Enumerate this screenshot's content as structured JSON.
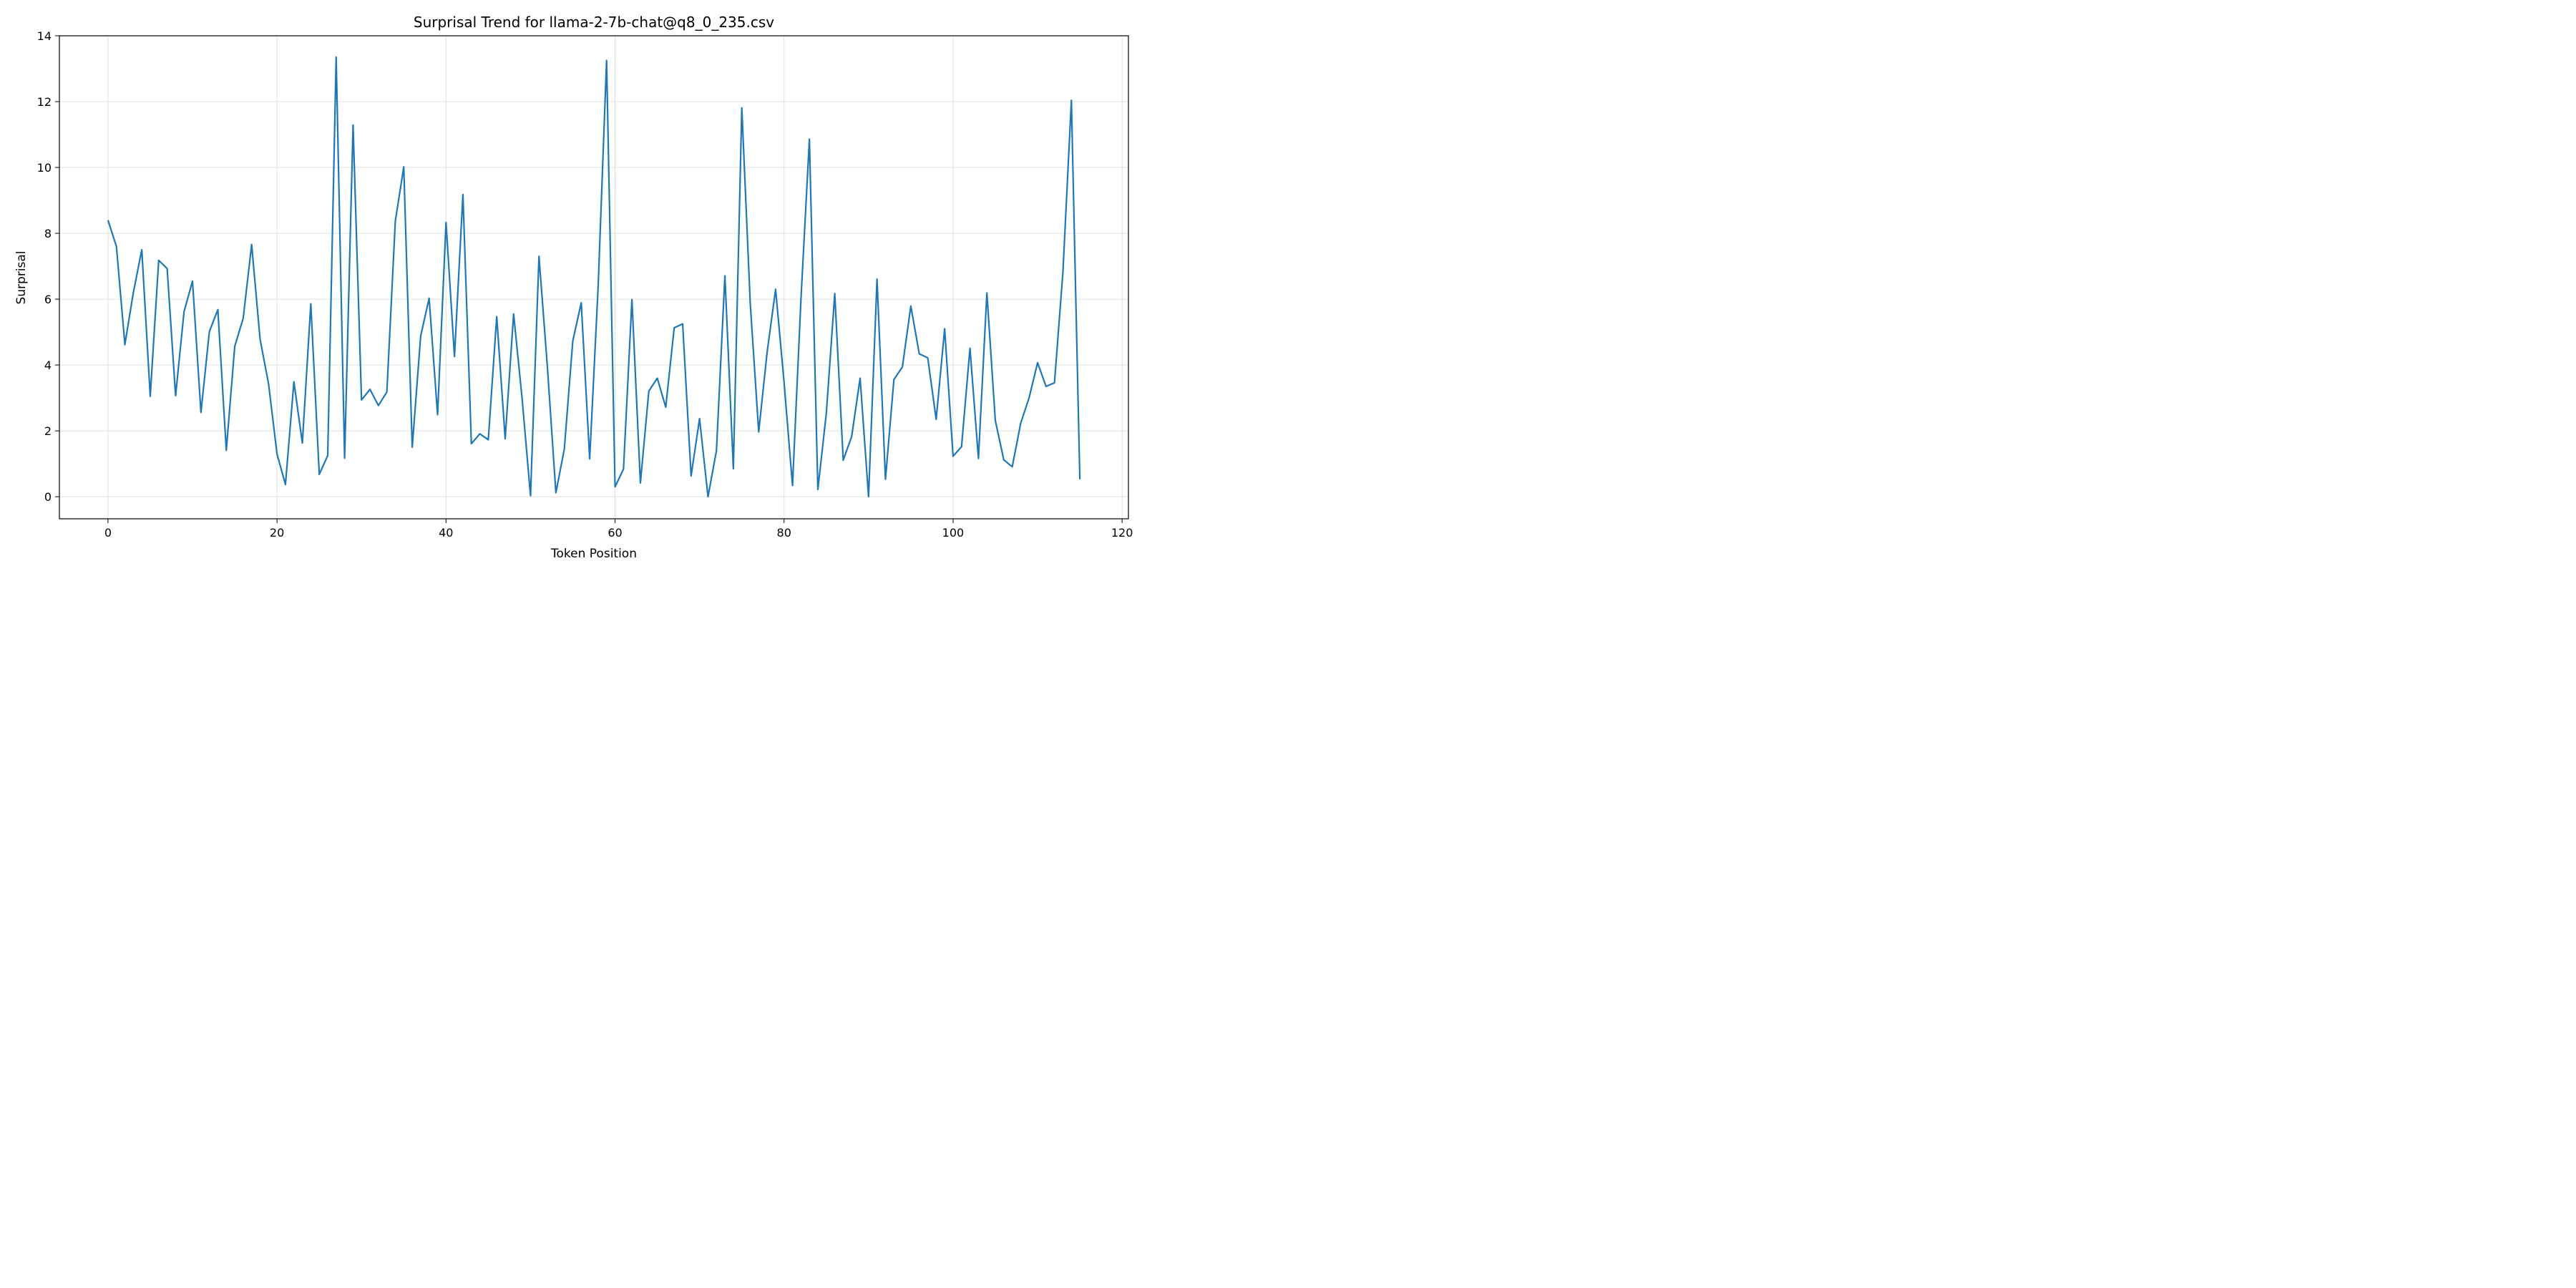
{
  "chart_data": {
    "type": "line",
    "title": "Surprisal Trend for llama-2-7b-chat@q8_0_235.csv",
    "xlabel": "Token Position",
    "ylabel": "Surprisal",
    "xlim": [
      -5.75,
      120.75
    ],
    "ylim": [
      -0.67,
      14.0
    ],
    "xticks": [
      0,
      20,
      40,
      60,
      80,
      100,
      120
    ],
    "yticks": [
      0,
      2,
      4,
      6,
      8,
      10,
      12,
      14
    ],
    "grid": true,
    "line_color": "#1f77b4",
    "series": [
      {
        "x": [
          0,
          1,
          2,
          3,
          4,
          5,
          6,
          7,
          8,
          9,
          10,
          11,
          12,
          13,
          14,
          15,
          16,
          17,
          18,
          19,
          20,
          21,
          22,
          23,
          24,
          25,
          26,
          27,
          28,
          29,
          30,
          31,
          32,
          33,
          34,
          35,
          36,
          37,
          38,
          39,
          40,
          41,
          42,
          43,
          44,
          45,
          46,
          47,
          48,
          49,
          50,
          51,
          52,
          53,
          54,
          55,
          56,
          57,
          58,
          59,
          60,
          61,
          62,
          63,
          64,
          65,
          66,
          67,
          68,
          69,
          70,
          71,
          72,
          73,
          74,
          75,
          76,
          77,
          78,
          79,
          80,
          81,
          82,
          83,
          84,
          85,
          86,
          87,
          88,
          89,
          90,
          91,
          92,
          93,
          94,
          95,
          96,
          97,
          98,
          99,
          100,
          101,
          102,
          103,
          104,
          105,
          106,
          107,
          108,
          109,
          110,
          111,
          112,
          113,
          114,
          115
        ],
        "values": [
          8.4,
          7.6,
          4.62,
          6.2,
          7.5,
          3.05,
          7.18,
          6.93,
          3.07,
          5.62,
          6.55,
          2.56,
          5.02,
          5.68,
          1.41,
          4.57,
          5.42,
          7.66,
          4.78,
          3.43,
          1.3,
          0.37,
          3.49,
          1.63,
          5.86,
          0.68,
          1.25,
          13.35,
          1.17,
          11.29,
          2.94,
          3.26,
          2.77,
          3.18,
          8.37,
          10.02,
          1.5,
          4.88,
          6.03,
          2.49,
          8.33,
          4.26,
          9.18,
          1.61,
          1.91,
          1.73,
          5.47,
          1.76,
          5.55,
          2.99,
          0.03,
          7.3,
          3.93,
          0.12,
          1.45,
          4.73,
          5.89,
          1.15,
          6.38,
          13.25,
          0.3,
          0.84,
          5.99,
          0.42,
          3.21,
          3.6,
          2.72,
          5.13,
          5.25,
          0.63,
          2.37,
          0.0,
          1.4,
          6.71,
          0.85,
          11.81,
          5.87,
          1.97,
          4.4,
          6.3,
          3.48,
          0.34,
          6.0,
          10.86,
          0.22,
          2.53,
          6.17,
          1.11,
          1.83,
          3.6,
          0.0,
          6.61,
          0.53,
          3.56,
          3.94,
          5.79,
          4.34,
          4.22,
          2.35,
          5.1,
          1.23,
          1.52,
          4.51,
          1.16,
          6.19,
          2.31,
          1.12,
          0.91,
          2.23,
          3.01,
          4.07,
          3.35,
          3.46,
          6.83,
          12.04,
          0.53
        ]
      }
    ]
  }
}
